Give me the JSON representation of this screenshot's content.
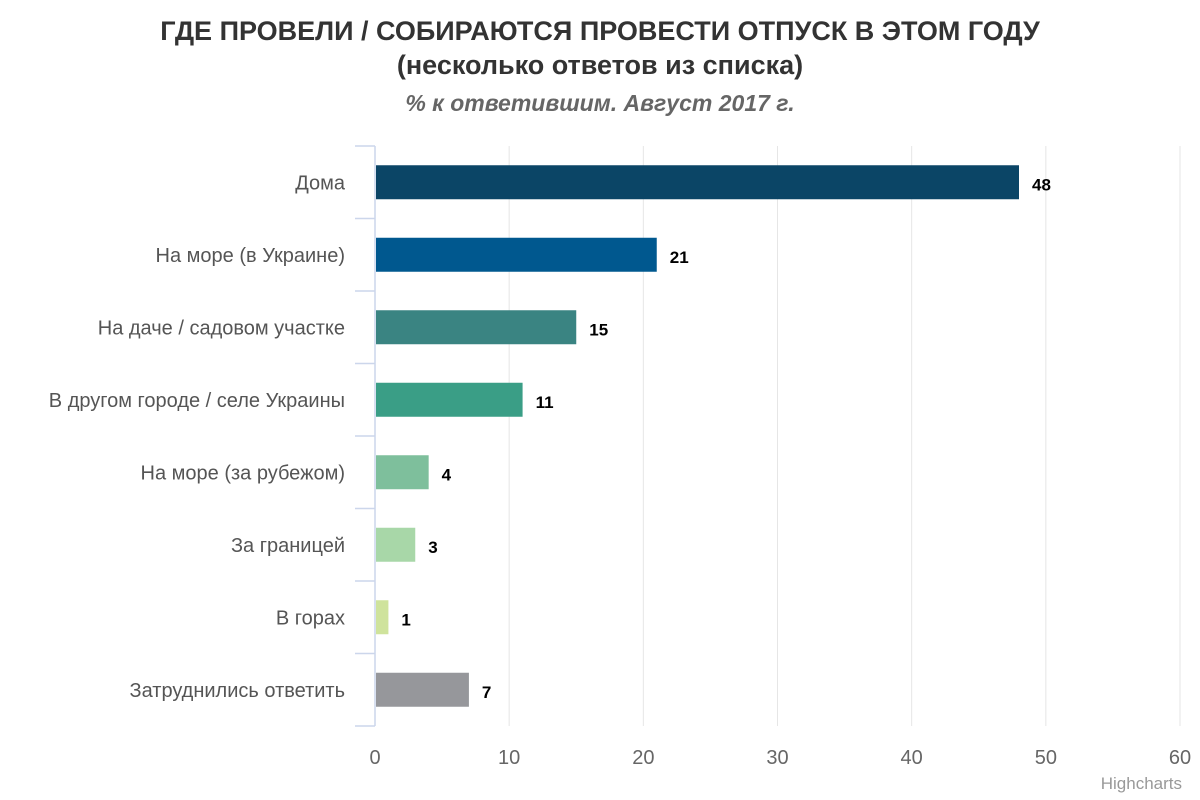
{
  "chart_data": {
    "type": "bar",
    "orientation": "horizontal",
    "title_lines": [
      "ГДЕ ПРОВЕЛИ / СОБИРАЮТСЯ  ПРОВЕСТИ ОТПУСК В ЭТОМ ГОДУ",
      "(несколько ответов из списка)"
    ],
    "subtitle": "% к ответившим. Август 2017 г.",
    "categories": [
      "Дома",
      "На море (в Украине)",
      "На даче / садовом участке",
      "В другом городе / селе Украины",
      "На море (за рубежом)",
      "За границей",
      "В горах",
      "Затруднились ответить"
    ],
    "values": [
      48,
      21,
      15,
      11,
      4,
      3,
      1,
      7
    ],
    "colors": [
      "#0b4566",
      "#00588f",
      "#3a8482",
      "#3a9e86",
      "#7ebf9c",
      "#a8d7a8",
      "#cfe39c",
      "#96979b"
    ],
    "xlim": [
      0,
      60
    ],
    "xticks": [
      0,
      10,
      20,
      30,
      40,
      50,
      60
    ],
    "grid": true,
    "data_labels": true
  },
  "credits": "Highcharts"
}
